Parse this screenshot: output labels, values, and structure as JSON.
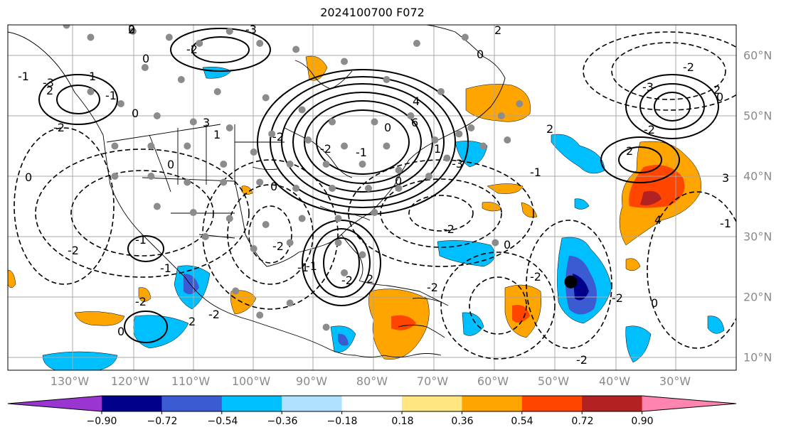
{
  "title": "2024100700 F072",
  "lon_labels": [
    "130°W",
    "120°W",
    "110°W",
    "100°W",
    "90°W",
    "80°W",
    "70°W",
    "60°W",
    "50°W",
    "40°W",
    "30°W"
  ],
  "lat_labels": [
    "60°N",
    "50°N",
    "40°N",
    "30°N",
    "20°N",
    "10°N"
  ],
  "contour_labels": [
    "0",
    "-3",
    "-2",
    "0",
    "-1",
    "2",
    "1",
    "-1",
    "-3",
    "-2",
    "0",
    "3",
    "-2",
    "4",
    "6",
    "-3",
    "2",
    "0",
    "2",
    "-2",
    "0",
    "-1",
    "-2",
    "2",
    "0",
    "-1",
    "-1",
    "-2",
    "0",
    "0",
    "-2",
    "2",
    "-2",
    "-2",
    "-1",
    "0",
    "1",
    "-1",
    "-2",
    "-2",
    "-2",
    "-2",
    "2",
    "0",
    "-3",
    "4",
    "2",
    "3",
    "-1",
    "1",
    "0",
    "-2",
    "-1",
    "-2",
    "-2",
    "0",
    "0",
    "2"
  ],
  "colorbar": {
    "ticks": [
      "−0.90",
      "−0.72",
      "−0.54",
      "−0.36",
      "−0.18",
      "0.18",
      "0.36",
      "0.54",
      "0.72",
      "0.90"
    ],
    "colors": [
      "#9a35d2",
      "#00008b",
      "#3a5bd1",
      "#00bfff",
      "#b0e2ff",
      "#ffffff",
      "#ffe680",
      "#ffa500",
      "#ff4500",
      "#b22222",
      "#ff85b0"
    ]
  },
  "storm_marker": {
    "lon": -47.5,
    "lat": 22.5
  },
  "stations": [
    [
      -131,
      65
    ],
    [
      -127,
      63
    ],
    [
      -120,
      64
    ],
    [
      -114,
      63
    ],
    [
      -109,
      62
    ],
    [
      -104,
      64
    ],
    [
      -99,
      62
    ],
    [
      -93,
      61
    ],
    [
      -85,
      59
    ],
    [
      -78,
      56
    ],
    [
      -65,
      63
    ],
    [
      -73,
      62
    ],
    [
      -118,
      58
    ],
    [
      -112,
      56
    ],
    [
      -106,
      54
    ],
    [
      -98,
      53
    ],
    [
      -92,
      51
    ],
    [
      -87,
      49
    ],
    [
      -80,
      49
    ],
    [
      -74,
      50
    ],
    [
      -127,
      54
    ],
    [
      -122,
      52
    ],
    [
      -116,
      50
    ],
    [
      -110,
      49
    ],
    [
      -104,
      48
    ],
    [
      -97,
      47
    ],
    [
      -91,
      46
    ],
    [
      -85,
      45
    ],
    [
      -78,
      45
    ],
    [
      -70,
      46
    ],
    [
      -64,
      48
    ],
    [
      -59,
      50
    ],
    [
      -56,
      52
    ],
    [
      -68,
      43
    ],
    [
      -123,
      45
    ],
    [
      -117,
      45
    ],
    [
      -111,
      45
    ],
    [
      -105,
      42
    ],
    [
      -100,
      44
    ],
    [
      -94,
      42
    ],
    [
      -88,
      42
    ],
    [
      -82,
      42
    ],
    [
      -76,
      41
    ],
    [
      -71,
      40
    ],
    [
      -123,
      40
    ],
    [
      -117,
      40
    ],
    [
      -111,
      39
    ],
    [
      -105,
      39
    ],
    [
      -99,
      39
    ],
    [
      -93,
      38
    ],
    [
      -87,
      38
    ],
    [
      -81,
      38
    ],
    [
      -76,
      38
    ],
    [
      -116,
      35
    ],
    [
      -110,
      34
    ],
    [
      -104,
      33
    ],
    [
      -98,
      32
    ],
    [
      -92,
      33
    ],
    [
      -86,
      33
    ],
    [
      -80,
      34
    ],
    [
      -108,
      30
    ],
    [
      -100,
      28
    ],
    [
      -94,
      29
    ],
    [
      -86,
      29
    ],
    [
      -82,
      27
    ],
    [
      -66,
      47
    ],
    [
      -62,
      45
    ],
    [
      -58,
      46
    ],
    [
      -60,
      29
    ],
    [
      -69,
      54
    ],
    [
      -85,
      24
    ],
    [
      -94,
      19
    ],
    [
      -99,
      17
    ],
    [
      -103,
      21
    ],
    [
      -88,
      15
    ]
  ]
}
